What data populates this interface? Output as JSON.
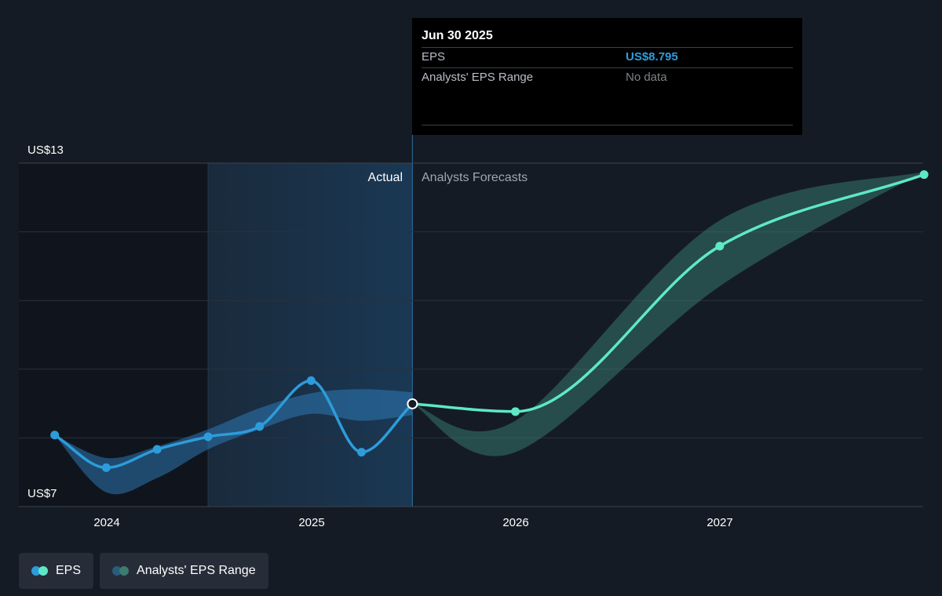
{
  "chart_data": {
    "type": "line",
    "y_axis": {
      "ylim": [
        7,
        13
      ],
      "tick_labels": [
        "US$13",
        "US$7"
      ]
    },
    "x_axis": {
      "tick_labels": [
        "2024",
        "2025",
        "2026",
        "2027"
      ]
    },
    "regions": {
      "actual_label": "Actual",
      "forecast_label": "Analysts Forecasts"
    },
    "series": [
      {
        "name": "EPS",
        "kind": "actual",
        "color": "#2d9cdb",
        "points": [
          {
            "x": "2023-09-30",
            "y": 8.25
          },
          {
            "x": "2023-12-31",
            "y": 7.68
          },
          {
            "x": "2024-03-31",
            "y": 8.0
          },
          {
            "x": "2024-06-30",
            "y": 8.22
          },
          {
            "x": "2024-09-30",
            "y": 8.4
          },
          {
            "x": "2024-12-31",
            "y": 9.2
          },
          {
            "x": "2025-03-31",
            "y": 7.95
          },
          {
            "x": "2025-06-30",
            "y": 8.795
          }
        ]
      },
      {
        "name": "EPS",
        "kind": "forecast",
        "color": "#5ee8c8",
        "points": [
          {
            "x": "2025-06-30",
            "y": 8.795
          },
          {
            "x": "2025-12-31",
            "y": 8.66
          },
          {
            "x": "2026-12-31",
            "y": 11.55
          },
          {
            "x": "2027-12-31",
            "y": 12.8
          }
        ]
      },
      {
        "name": "Analysts' EPS Range",
        "kind": "actual-range",
        "color": "#2d9cdb",
        "points": [
          {
            "x": "2023-09-30",
            "low": 8.25,
            "high": 8.25
          },
          {
            "x": "2023-12-31",
            "low": 7.25,
            "high": 7.85
          },
          {
            "x": "2024-03-31",
            "low": 7.5,
            "high": 8.05
          },
          {
            "x": "2024-06-30",
            "low": 8.0,
            "high": 8.35
          },
          {
            "x": "2024-09-30",
            "low": 8.35,
            "high": 8.72
          },
          {
            "x": "2024-12-31",
            "low": 8.62,
            "high": 8.98
          },
          {
            "x": "2025-03-31",
            "low": 8.5,
            "high": 9.05
          },
          {
            "x": "2025-06-30",
            "low": 8.6,
            "high": 9.0
          }
        ]
      },
      {
        "name": "Analysts' EPS Range",
        "kind": "forecast-range",
        "color": "#5ee8c8",
        "points": [
          {
            "x": "2025-06-30",
            "low": 8.795,
            "high": 8.795
          },
          {
            "x": "2025-12-31",
            "low": 7.95,
            "high": 8.5
          },
          {
            "x": "2026-12-31",
            "low": 10.85,
            "high": 12.0
          },
          {
            "x": "2027-12-31",
            "low": 12.85,
            "high": 12.85
          }
        ]
      }
    ],
    "grid": true,
    "legend_placement": "bottom-left"
  },
  "tooltip": {
    "date": "Jun 30 2025",
    "rows": [
      {
        "label": "EPS",
        "value": "US$8.795"
      },
      {
        "label": "Analysts' EPS Range",
        "value": "No data"
      }
    ]
  },
  "legend": {
    "items": [
      {
        "label": "EPS",
        "colors": [
          "#2d9cdb",
          "#5ee8c8"
        ]
      },
      {
        "label": "Analysts' EPS Range",
        "colors": [
          "#2a5c7e",
          "#3d7a70"
        ]
      }
    ]
  }
}
